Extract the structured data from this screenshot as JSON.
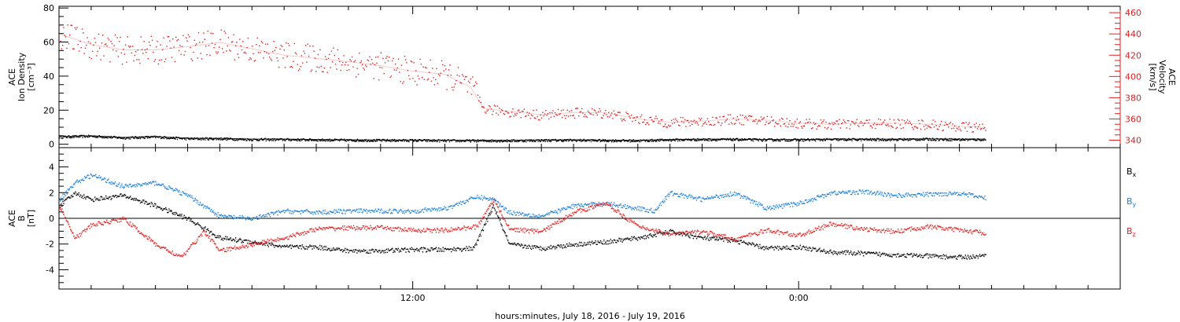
{
  "x_axis": {
    "label": "hours:minutes, July 18, 2016 - July 19, 2016",
    "ticks": [
      {
        "hours": 12,
        "label": "12:00"
      },
      {
        "hours": 24,
        "label": "0:00"
      }
    ],
    "range_hours": [
      1.0,
      34.0
    ]
  },
  "chart_data": [
    {
      "type": "scatter",
      "title": "",
      "xlabel": "hours:minutes, July 18, 2016 - July 19, 2016",
      "left_axis": {
        "label_lines": [
          "ACE",
          "Ion Density",
          "[cm⁻³]"
        ],
        "ylim": [
          -2,
          81
        ],
        "ticks": [
          0,
          20,
          40,
          60,
          80
        ]
      },
      "right_axis": {
        "label_lines": [
          "ACE",
          "Velocity",
          "[km/s]"
        ],
        "ylim": [
          333,
          466
        ],
        "ticks": [
          340,
          360,
          380,
          400,
          420,
          440,
          460
        ],
        "color": "#e02020"
      },
      "grid": false,
      "series": [
        {
          "name": "",
          "axis": "left",
          "color": "#000000",
          "x": [
            1.0,
            2.0,
            3.0,
            4.0,
            5.0,
            6.0,
            7.0,
            8.0,
            9.0,
            10.0,
            11.0,
            12.0,
            13.0,
            14.0,
            15.0,
            16.0,
            17.0,
            18.0,
            19.0,
            20.0,
            21.0,
            22.0,
            23.0,
            24.0,
            25.0,
            26.0,
            27.0,
            28.0,
            29.0,
            29.8
          ],
          "y": [
            4.5,
            5.0,
            4.0,
            4.5,
            3.5,
            3.5,
            3.0,
            3.0,
            2.8,
            2.6,
            2.5,
            2.5,
            2.3,
            2.3,
            2.3,
            2.5,
            2.6,
            2.4,
            2.3,
            2.8,
            3.0,
            3.0,
            2.8,
            2.8,
            3.0,
            3.0,
            3.0,
            3.2,
            3.0,
            3.0
          ]
        },
        {
          "name": "",
          "axis": "right",
          "color": "#e02020",
          "x": [
            1.0,
            2.0,
            3.0,
            4.0,
            5.0,
            6.0,
            7.0,
            8.0,
            9.0,
            10.0,
            11.0,
            12.0,
            13.0,
            13.8,
            14.2,
            15.0,
            16.0,
            17.0,
            18.0,
            19.0,
            20.0,
            21.0,
            22.0,
            23.0,
            24.0,
            25.0,
            26.0,
            27.0,
            28.0,
            29.0,
            29.8
          ],
          "y": [
            440,
            430,
            425,
            425,
            428,
            432,
            426,
            420,
            417,
            414,
            410,
            405,
            402,
            390,
            370,
            367,
            364,
            366,
            366,
            360,
            357,
            358,
            360,
            359,
            356,
            355,
            356,
            356,
            355,
            353,
            352
          ]
        }
      ]
    },
    {
      "type": "scatter",
      "title": "",
      "xlabel": "hours:minutes, July 18, 2016 - July 19, 2016",
      "left_axis": {
        "label_lines": [
          "ACE",
          "B",
          "[nT]"
        ],
        "ylim": [
          -5.5,
          5.5
        ],
        "ticks": [
          -4,
          -2,
          0,
          2,
          4
        ]
      },
      "zero_line": true,
      "grid": false,
      "legend": {
        "placement": "right",
        "entries": [
          {
            "base": "B",
            "sub": "x",
            "color": "#000000"
          },
          {
            "base": "B",
            "sub": "y",
            "color": "#1e7fd6"
          },
          {
            "base": "B",
            "sub": "z",
            "color": "#e02020"
          }
        ]
      },
      "series": [
        {
          "name": "Bx",
          "color": "#000000",
          "x": [
            1.0,
            1.5,
            2.0,
            3.0,
            4.0,
            5.0,
            6.0,
            7.0,
            8.0,
            9.0,
            10.0,
            11.0,
            12.0,
            13.0,
            13.9,
            14.5,
            15.0,
            16.0,
            17.0,
            18.0,
            19.0,
            20.0,
            21.0,
            22.0,
            23.0,
            24.0,
            25.0,
            26.0,
            27.0,
            28.0,
            29.0,
            29.8
          ],
          "y": [
            1.0,
            2.0,
            1.5,
            1.8,
            1.0,
            0.0,
            -1.5,
            -1.8,
            -2.2,
            -2.2,
            -2.5,
            -2.5,
            -2.4,
            -2.4,
            -2.3,
            1.0,
            -2.0,
            -2.3,
            -2.0,
            -1.8,
            -1.5,
            -1.0,
            -1.5,
            -1.7,
            -2.3,
            -2.2,
            -2.6,
            -2.7,
            -2.8,
            -2.9,
            -3.0,
            -2.9
          ]
        },
        {
          "name": "By",
          "color": "#1e7fd6",
          "x": [
            1.0,
            1.5,
            2.0,
            3.0,
            4.0,
            5.0,
            6.0,
            7.0,
            8.0,
            9.0,
            10.0,
            11.0,
            12.0,
            13.0,
            14.0,
            14.5,
            15.0,
            16.0,
            17.0,
            18.0,
            19.0,
            19.5,
            20.0,
            21.0,
            22.0,
            23.0,
            24.0,
            25.0,
            26.0,
            27.0,
            28.0,
            29.0,
            29.8
          ],
          "y": [
            1.5,
            2.8,
            3.4,
            2.5,
            2.8,
            1.8,
            0.2,
            0.0,
            0.6,
            0.5,
            0.6,
            0.6,
            0.6,
            0.8,
            1.7,
            1.5,
            0.5,
            0.2,
            1.0,
            1.2,
            0.8,
            0.6,
            2.0,
            1.5,
            2.0,
            0.8,
            1.2,
            2.0,
            2.1,
            1.8,
            1.9,
            2.0,
            1.6
          ]
        },
        {
          "name": "Bz",
          "color": "#e02020",
          "x": [
            1.0,
            1.5,
            2.0,
            3.0,
            4.0,
            4.8,
            5.5,
            6.0,
            7.0,
            8.0,
            9.0,
            10.0,
            11.0,
            12.0,
            13.0,
            14.0,
            14.5,
            15.0,
            16.0,
            17.0,
            18.0,
            19.0,
            20.0,
            21.0,
            22.0,
            23.0,
            24.0,
            25.0,
            26.0,
            27.0,
            28.0,
            29.0,
            29.8
          ],
          "y": [
            1.0,
            -1.5,
            -0.5,
            0.0,
            -2.0,
            -3.0,
            -1.0,
            -2.5,
            -2.0,
            -1.5,
            -0.8,
            -0.7,
            -0.7,
            -0.9,
            -0.9,
            -0.6,
            1.5,
            -0.8,
            -1.0,
            0.5,
            1.2,
            -0.6,
            -1.2,
            -1.0,
            -1.6,
            -0.9,
            -1.3,
            -0.4,
            -0.8,
            -1.0,
            -0.6,
            -0.9,
            -1.1
          ]
        }
      ]
    }
  ]
}
